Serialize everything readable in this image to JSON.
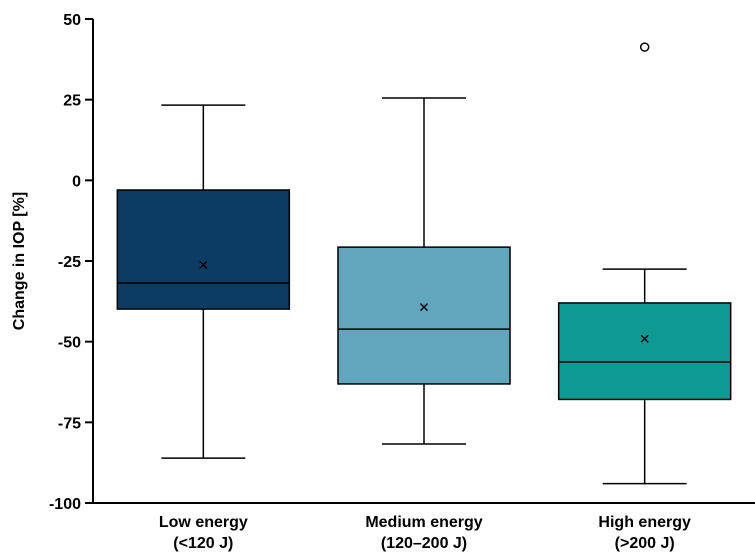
{
  "chart_data": {
    "type": "box",
    "y_label": "Change in IOP [%]",
    "categories": [
      [
        "Low energy",
        "(<120 J)"
      ],
      [
        "Medium energy",
        "(120–200 J)"
      ],
      [
        "High energy",
        "(>200 J)"
      ]
    ],
    "boxes": [
      {
        "whislo": -86.1,
        "q1": -39.9,
        "med": -31.8,
        "q3": -3.0,
        "whishi": 23.3,
        "mean": -26.2,
        "fliers": []
      },
      {
        "whislo": -81.7,
        "q1": -63.1,
        "med": -46.1,
        "q3": -20.7,
        "whishi": 25.5,
        "mean": -39.3,
        "fliers": []
      },
      {
        "whislo": -94.0,
        "q1": -67.9,
        "med": -56.3,
        "q3": -38.0,
        "whishi": -27.5,
        "mean": -49.1,
        "fliers": [
          41.3
        ]
      }
    ],
    "colors": [
      "#0b3c63",
      "#61a5bf",
      "#0e9a93"
    ],
    "ylim": [
      -100,
      50
    ],
    "yticks": [
      -100,
      -75,
      -50,
      -25,
      0,
      25,
      50
    ],
    "grid": false
  }
}
